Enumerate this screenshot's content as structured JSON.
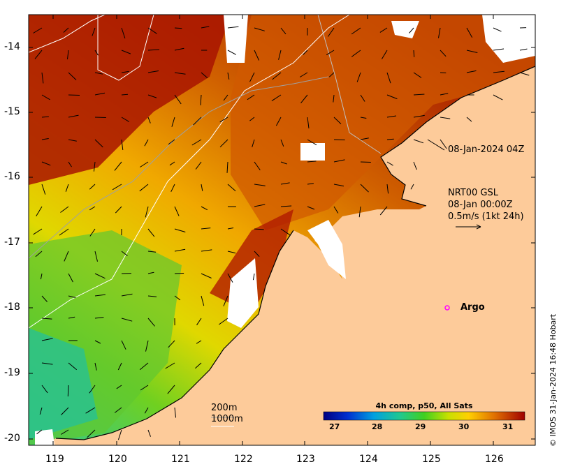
{
  "map": {
    "lon_ticks": [
      "119",
      "120",
      "121",
      "122",
      "123",
      "124",
      "125",
      "126"
    ],
    "lat_ticks": [
      "-14",
      "-15",
      "-16",
      "-17",
      "-18",
      "-19",
      "-20"
    ],
    "extent": {
      "lon_min": 118.6,
      "lon_max": 126.7,
      "lat_min": -20.1,
      "lat_max": -13.5
    }
  },
  "annotations": {
    "timestamp": "08-Jan-2024 04Z",
    "current_label": "NRT00 GSL",
    "current_date": "08-Jan 00:00Z",
    "current_scale": "0.5m/s (1kt 24h)",
    "argo_label": "Argo",
    "isobath_200": "200m",
    "isobath_1000": "1000m",
    "copyright": "© IMOS 31-Jan-2024 16:48 Hobart"
  },
  "colorbar": {
    "title": "4h comp, p50, All Sats",
    "ticks": [
      "27",
      "28",
      "29",
      "30",
      "31"
    ]
  },
  "colors": {
    "land": "#fdcb9a",
    "argo_marker": "#ff00ff",
    "cloud": "#ffffff"
  }
}
